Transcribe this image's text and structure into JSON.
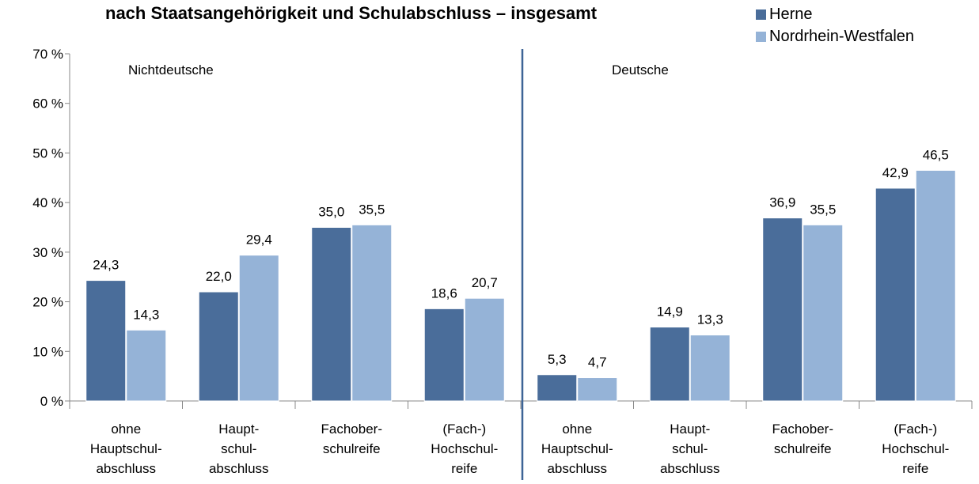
{
  "chart_data": {
    "type": "bar",
    "title": "nach Staatsangehörigkeit und Schulabschluss – insgesamt",
    "annotations": [
      "Nichtdeutsche",
      "Deutsche"
    ],
    "categories": [
      [
        "ohne",
        "Hauptschul-",
        "abschluss"
      ],
      [
        "Haupt-",
        "schul-",
        "abschluss"
      ],
      [
        "Fachober-",
        "schulreife"
      ],
      [
        "(Fach-)",
        "Hochschul-",
        "reife"
      ],
      [
        "ohne",
        "Hauptschul-",
        "abschluss"
      ],
      [
        "Haupt-",
        "schul-",
        "abschluss"
      ],
      [
        "Fachober-",
        "schulreife"
      ],
      [
        "(Fach-)",
        "Hochschul-",
        "reife"
      ]
    ],
    "series": [
      {
        "name": "Herne",
        "color": "#4a6d9a",
        "values": [
          24.3,
          22.0,
          35.0,
          18.6,
          5.3,
          14.9,
          36.9,
          42.9
        ],
        "value_labels": [
          "24,3",
          "22,0",
          "35,0",
          "18,6",
          "5,3",
          "14,9",
          "36,9",
          "42,9"
        ]
      },
      {
        "name": "Nordrhein-Westfalen",
        "color": "#95b3d7",
        "values": [
          14.3,
          29.4,
          35.5,
          20.7,
          4.7,
          13.3,
          35.5,
          46.5
        ],
        "value_labels": [
          "14,3",
          "29,4",
          "35,5",
          "20,7",
          "4,7",
          "13,3",
          "35,5",
          "46,5"
        ]
      }
    ],
    "ylim": [
      0,
      70
    ],
    "yticks": [
      {
        "value": 0,
        "label": "0 %"
      },
      {
        "value": 10,
        "label": "10 %"
      },
      {
        "value": 20,
        "label": "20 %"
      },
      {
        "value": 30,
        "label": "30 %"
      },
      {
        "value": 40,
        "label": "40 %"
      },
      {
        "value": 50,
        "label": "50 %"
      },
      {
        "value": 60,
        "label": "60 %"
      },
      {
        "value": 70,
        "label": "70 %"
      }
    ],
    "legend": "top-right"
  }
}
